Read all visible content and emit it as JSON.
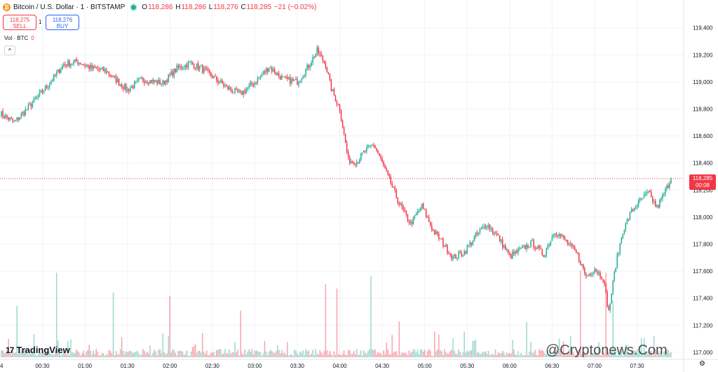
{
  "header": {
    "symbol_icon": "bitcoin-icon",
    "title": "Bitcoin / U.S. Dollar · 1 · BITSTAMP",
    "ohlc": {
      "o_label": "O",
      "o": "118,286",
      "h_label": "H",
      "h": "118,286",
      "l_label": "L",
      "l": "118,276",
      "c_label": "C",
      "c": "118,285",
      "change": "−21 (−0.02%)"
    }
  },
  "trade": {
    "sell_price": "118,275",
    "sell_label": "SELL",
    "spread": "1",
    "buy_price": "118,276",
    "buy_label": "BUY"
  },
  "volume": {
    "label": "Vol · BTC",
    "value": "0"
  },
  "collapse_glyph": "^",
  "logo": {
    "text": "TradingView",
    "mark": "17"
  },
  "watermark": "@Cryptonews.Com",
  "last_price": {
    "price": "118,285",
    "countdown": "00:08"
  },
  "colors": {
    "up": "#22ab94",
    "down": "#f23645",
    "grid": "#f0f3fa",
    "axis_text": "#131722"
  },
  "chart_data": {
    "type": "candlestick",
    "title": "Bitcoin / U.S. Dollar · 1 · BITSTAMP",
    "y_ticks": [
      117000,
      117200,
      117400,
      117600,
      117800,
      118000,
      118200,
      118400,
      118600,
      118800,
      119000,
      119200,
      119400
    ],
    "y_tick_labels": [
      "117,000",
      "117,200",
      "117,400",
      "117,600",
      "117,800",
      "118,000",
      "118,200",
      "118,400",
      "118,600",
      "118,800",
      "119,000",
      "119,200",
      "119,400"
    ],
    "ylim": [
      117000,
      119450
    ],
    "x_ticks": [
      "00:30",
      "01:00",
      "01:30",
      "02:00",
      "02:30",
      "03:00",
      "03:30",
      "04:00",
      "04:30",
      "05:00",
      "05:30",
      "06:00",
      "06:30",
      "07:00",
      "07:30"
    ],
    "x_tick_minutes": [
      30,
      60,
      90,
      120,
      150,
      180,
      210,
      240,
      270,
      300,
      330,
      360,
      390,
      420,
      450
    ],
    "left_edge_label": "4",
    "x_range_minutes": [
      0,
      474
    ],
    "grid": true,
    "last_price_line": 118285,
    "series_path": [
      [
        0,
        118770
      ],
      [
        10,
        118700
      ],
      [
        20,
        118810
      ],
      [
        35,
        118990
      ],
      [
        45,
        119130
      ],
      [
        55,
        119150
      ],
      [
        65,
        119100
      ],
      [
        75,
        119080
      ],
      [
        90,
        118940
      ],
      [
        100,
        119020
      ],
      [
        115,
        118990
      ],
      [
        125,
        119100
      ],
      [
        135,
        119140
      ],
      [
        145,
        119080
      ],
      [
        160,
        118960
      ],
      [
        170,
        118910
      ],
      [
        180,
        119000
      ],
      [
        190,
        119110
      ],
      [
        200,
        119020
      ],
      [
        210,
        119000
      ],
      [
        218,
        119120
      ],
      [
        224,
        119230
      ],
      [
        230,
        119130
      ],
      [
        234,
        118950
      ],
      [
        240,
        118800
      ],
      [
        246,
        118420
      ],
      [
        252,
        118410
      ],
      [
        258,
        118490
      ],
      [
        264,
        118540
      ],
      [
        270,
        118400
      ],
      [
        276,
        118250
      ],
      [
        282,
        118100
      ],
      [
        290,
        117950
      ],
      [
        298,
        118080
      ],
      [
        306,
        117900
      ],
      [
        312,
        117820
      ],
      [
        320,
        117700
      ],
      [
        328,
        117740
      ],
      [
        336,
        117860
      ],
      [
        344,
        117950
      ],
      [
        352,
        117850
      ],
      [
        360,
        117710
      ],
      [
        368,
        117760
      ],
      [
        376,
        117810
      ],
      [
        384,
        117720
      ],
      [
        392,
        117900
      ],
      [
        400,
        117820
      ],
      [
        408,
        117720
      ],
      [
        414,
        117560
      ],
      [
        420,
        117620
      ],
      [
        426,
        117550
      ],
      [
        430,
        117300
      ],
      [
        435,
        117650
      ],
      [
        440,
        117900
      ],
      [
        446,
        118040
      ],
      [
        452,
        118120
      ],
      [
        458,
        118180
      ],
      [
        464,
        118070
      ],
      [
        468,
        118150
      ],
      [
        474,
        118285
      ]
    ],
    "volume_spikes_minutes": [
      12,
      40,
      80,
      120,
      170,
      230,
      238,
      262,
      282,
      328,
      372,
      410,
      428,
      433
    ]
  }
}
